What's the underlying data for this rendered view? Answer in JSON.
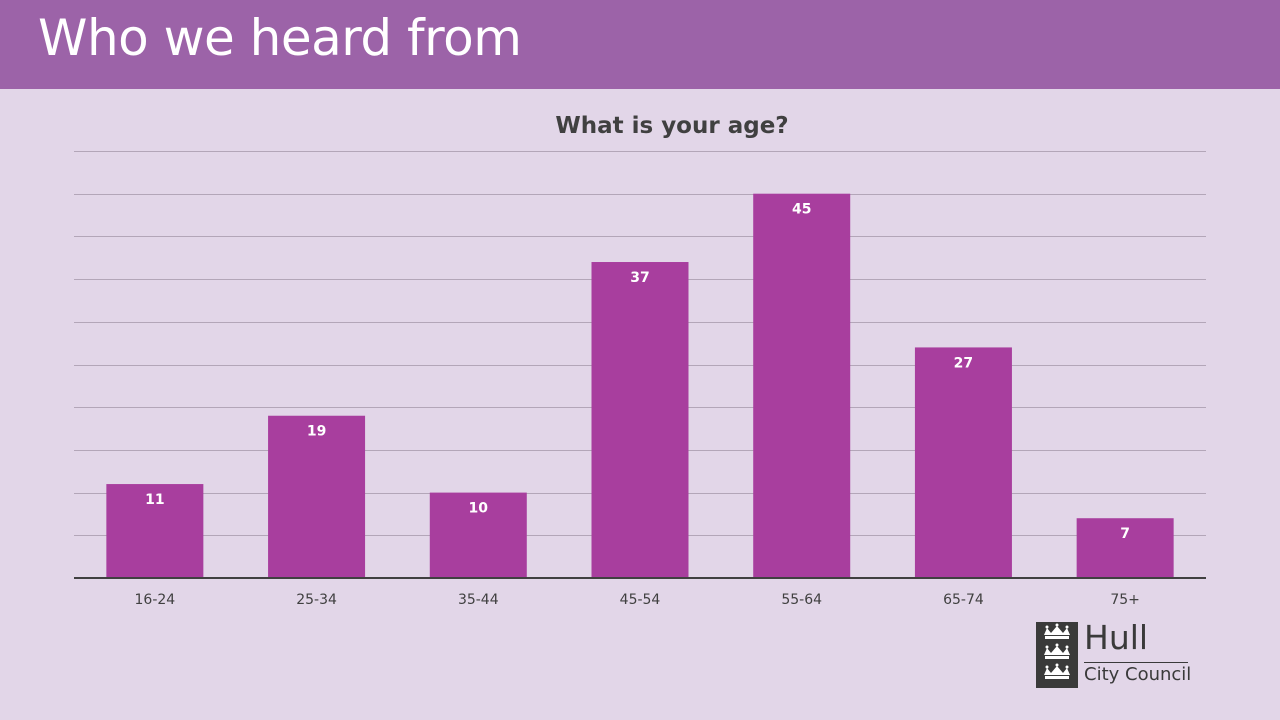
{
  "slide": {
    "title": "Who we heard from"
  },
  "logo": {
    "name": "Hull",
    "subtitle": "City Council"
  },
  "colors": {
    "header_bg": "#9c63a8",
    "page_bg": "#e2d6e8",
    "bar": "#a83e9e",
    "text": "#404040"
  },
  "chart_data": {
    "type": "bar",
    "title": "What is your age?",
    "categories": [
      "16-24",
      "25-34",
      "35-44",
      "45-54",
      "55-64",
      "65-74",
      "75+"
    ],
    "values": [
      11,
      19,
      10,
      37,
      45,
      27,
      7
    ],
    "xlabel": "",
    "ylabel": "",
    "ylim": [
      0,
      50
    ],
    "grid": true,
    "data_labels": true,
    "legend": "none"
  }
}
